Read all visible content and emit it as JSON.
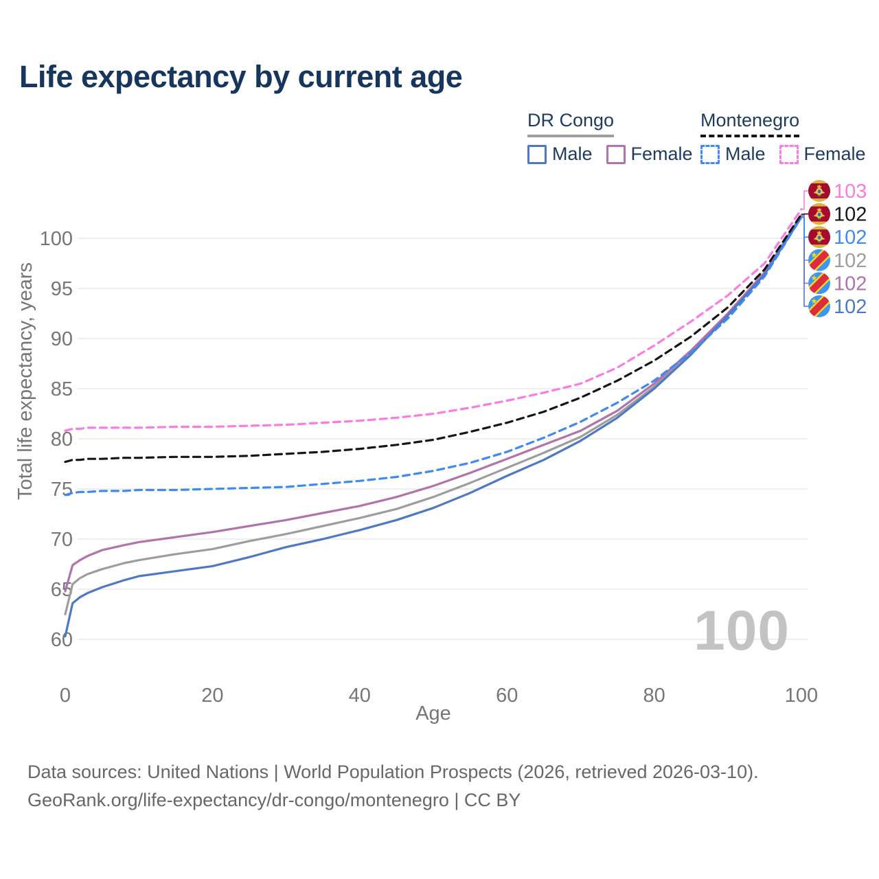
{
  "page": {
    "title": "Life expectancy by current age",
    "background": "#ffffff",
    "title_color": "#17365e"
  },
  "legend": {
    "groups": [
      {
        "label": "DR Congo",
        "line_style": "solid",
        "underline_color": "#9e9e9e",
        "items": [
          {
            "label": "Male",
            "color": "#4d78c4",
            "dashed": false
          },
          {
            "label": "Female",
            "color": "#b173a9",
            "dashed": false
          }
        ]
      },
      {
        "label": "Montenegro",
        "line_style": "dashed",
        "underline_color": "#161616",
        "items": [
          {
            "label": "Male",
            "color": "#3e8af2",
            "dashed": true
          },
          {
            "label": "Female",
            "color": "#fa7ce1",
            "dashed": true
          }
        ]
      }
    ]
  },
  "chart_data": {
    "type": "line",
    "title": "Life expectancy by current age",
    "xlabel": "Age",
    "ylabel": "Total life expectancy, years",
    "watermark": "100",
    "grid": "horizontal",
    "legend_position": "top-right",
    "xlim": [
      0,
      100
    ],
    "ylim": [
      58.5,
      104
    ],
    "x_ticks": [
      0,
      20,
      40,
      60,
      80,
      100
    ],
    "y_ticks": [
      60,
      65,
      70,
      75,
      80,
      85,
      90,
      95,
      100
    ],
    "x": [
      0,
      1,
      2,
      3,
      5,
      8,
      10,
      15,
      20,
      25,
      30,
      35,
      40,
      45,
      50,
      55,
      60,
      65,
      70,
      75,
      80,
      85,
      90,
      95,
      100
    ],
    "series": [
      {
        "id": "dr-congo-both",
        "name": "DR Congo Both sexes",
        "color": "#9d9d9d",
        "dashed": false,
        "flag": "dr-congo",
        "end_label": "102",
        "end_row": 3,
        "values": [
          62.5,
          65.5,
          66.1,
          66.5,
          67.0,
          67.6,
          67.9,
          68.5,
          69.0,
          69.8,
          70.5,
          71.3,
          72.1,
          73.0,
          74.2,
          75.6,
          77.1,
          78.6,
          80.2,
          82.4,
          85.2,
          88.6,
          92.4,
          96.5,
          102.2
        ]
      },
      {
        "id": "dr-congo-female",
        "name": "DR Congo Female",
        "color": "#b173a9",
        "dashed": false,
        "flag": "dr-congo",
        "end_label": "102",
        "end_row": 4,
        "values": [
          64.8,
          67.4,
          67.9,
          68.3,
          68.9,
          69.4,
          69.7,
          70.2,
          70.7,
          71.3,
          71.9,
          72.6,
          73.3,
          74.2,
          75.3,
          76.6,
          78.0,
          79.4,
          80.8,
          82.8,
          85.5,
          88.8,
          92.5,
          96.6,
          102.3
        ]
      },
      {
        "id": "dr-congo-male",
        "name": "DR Congo Male",
        "color": "#4d78c4",
        "dashed": false,
        "flag": "dr-congo",
        "end_label": "102",
        "end_row": 5,
        "values": [
          60.3,
          63.6,
          64.2,
          64.6,
          65.2,
          65.9,
          66.3,
          66.8,
          67.3,
          68.2,
          69.2,
          70.0,
          70.9,
          71.9,
          73.1,
          74.6,
          76.3,
          77.9,
          79.8,
          82.1,
          85.0,
          88.4,
          92.3,
          96.4,
          102.1
        ]
      },
      {
        "id": "montenegro-male",
        "name": "Montenegro Male",
        "color": "#3e8af2",
        "dashed": true,
        "flag": "montenegro",
        "end_label": "102",
        "end_row": 2,
        "values": [
          74.4,
          74.6,
          74.7,
          74.7,
          74.8,
          74.8,
          74.9,
          74.9,
          75.0,
          75.1,
          75.2,
          75.5,
          75.8,
          76.2,
          76.8,
          77.6,
          78.7,
          80.1,
          81.7,
          83.6,
          85.8,
          88.6,
          92.0,
          96.2,
          102.1
        ]
      },
      {
        "id": "montenegro-both",
        "name": "Montenegro Both sexes",
        "color": "#161616",
        "dashed": true,
        "flag": "montenegro",
        "end_label": "102",
        "end_row": 1,
        "values": [
          77.7,
          77.9,
          77.9,
          78.0,
          78.0,
          78.1,
          78.1,
          78.2,
          78.2,
          78.3,
          78.5,
          78.7,
          79.0,
          79.4,
          79.9,
          80.7,
          81.6,
          82.7,
          84.1,
          85.8,
          87.8,
          90.2,
          93.1,
          96.9,
          102.4
        ]
      },
      {
        "id": "montenegro-female",
        "name": "Montenegro Female",
        "color": "#fa7ce1",
        "dashed": true,
        "flag": "montenegro",
        "end_label": "103",
        "end_row": 0,
        "values": [
          80.8,
          81.0,
          81.0,
          81.1,
          81.1,
          81.1,
          81.1,
          81.2,
          81.2,
          81.3,
          81.4,
          81.6,
          81.8,
          82.1,
          82.5,
          83.1,
          83.8,
          84.6,
          85.5,
          87.1,
          89.3,
          91.7,
          94.3,
          97.5,
          102.9
        ]
      }
    ]
  },
  "footer": {
    "line1": "Data sources: United Nations | World Population Prospects (2026, retrieved 2026-03-10).",
    "line2": "GeoRank.org/life-expectancy/dr-congo/montenegro | CC BY"
  }
}
